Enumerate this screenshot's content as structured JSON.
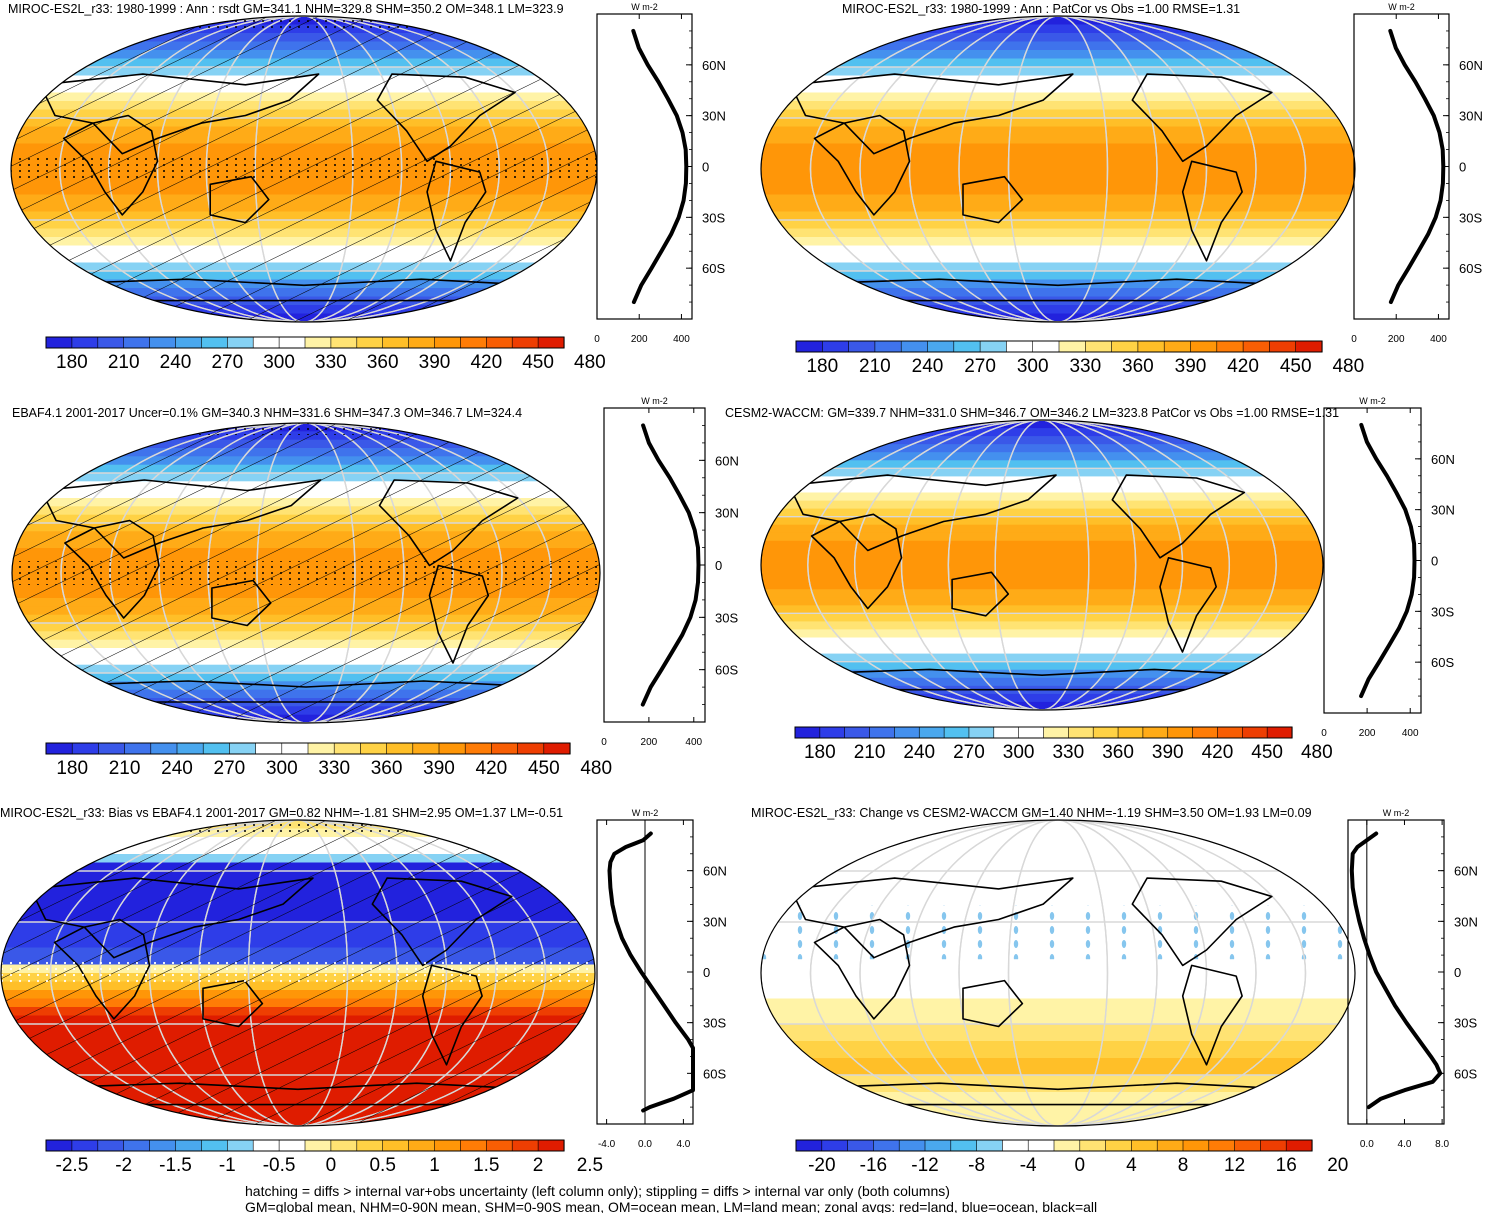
{
  "panels": [
    {
      "title": "MIROC-ES2L_r33: 1980-1999 : Ann : rsdt GM=341.1 NHM=329.8 SHM=350.2 OM=348.1 LM=323.9",
      "map_type": "rsdt",
      "hatch": true,
      "stipple_eq": true,
      "colorbar": [
        "180",
        "210",
        "240",
        "270",
        "300",
        "330",
        "360",
        "390",
        "420",
        "450",
        "480"
      ],
      "zonal": {
        "unit": "W m-2",
        "xticks": [
          "0",
          "200",
          "400"
        ],
        "xlim": [
          0,
          450
        ],
        "lat_ticks": [
          "60N",
          "30N",
          "0",
          "30S",
          "60S"
        ],
        "lat": [
          80,
          70,
          60,
          50,
          40,
          30,
          20,
          10,
          0,
          -10,
          -20,
          -30,
          -40,
          -50,
          -60,
          -70,
          -80
        ],
        "values": [
          172,
          198,
          240,
          291,
          336,
          378,
          405,
          420,
          423,
          421,
          410,
          387,
          351,
          305,
          258,
          210,
          175
        ]
      }
    },
    {
      "title": "MIROC-ES2L_r33: 1980-1999 : Ann : PatCor vs Obs =1.00 RMSE=1.31",
      "map_type": "rsdt",
      "hatch": false,
      "stipple_eq": false,
      "colorbar": [
        "180",
        "210",
        "240",
        "270",
        "300",
        "330",
        "360",
        "390",
        "420",
        "450",
        "480"
      ],
      "zonal": {
        "unit": "W m-2",
        "xticks": [
          "0",
          "200",
          "400"
        ],
        "xlim": [
          0,
          450
        ],
        "lat_ticks": [
          "60N",
          "30N",
          "0",
          "30S",
          "60S"
        ],
        "lat": [
          80,
          70,
          60,
          50,
          40,
          30,
          20,
          10,
          0,
          -10,
          -20,
          -30,
          -40,
          -50,
          -60,
          -70,
          -80
        ],
        "values": [
          172,
          198,
          240,
          291,
          336,
          378,
          405,
          420,
          423,
          421,
          410,
          387,
          351,
          305,
          258,
          210,
          175
        ]
      }
    },
    {
      "title": "EBAF4.1 2001-2017 Uncer=0.1% GM=340.3 NHM=331.6 SHM=347.3 OM=346.7 LM=324.4",
      "map_type": "rsdt",
      "hatch": true,
      "stipple_eq": true,
      "colorbar": [
        "180",
        "210",
        "240",
        "270",
        "300",
        "330",
        "360",
        "390",
        "420",
        "450",
        "480"
      ],
      "zonal": {
        "unit": "W m-2",
        "xticks": [
          "0",
          "200",
          "400"
        ],
        "xlim": [
          0,
          450
        ],
        "lat_ticks": [
          "60N",
          "30N",
          "0",
          "30S",
          "60S"
        ],
        "lat": [
          80,
          70,
          60,
          50,
          40,
          30,
          20,
          10,
          0,
          -10,
          -20,
          -30,
          -40,
          -50,
          -60,
          -70,
          -80
        ],
        "values": [
          174,
          200,
          243,
          293,
          337,
          378,
          404,
          419,
          421,
          419,
          408,
          385,
          349,
          303,
          256,
          208,
          173
        ]
      }
    },
    {
      "title": "CESM2-WACCM: GM=339.7 NHM=331.0 SHM=346.7 OM=346.2 LM=323.8 PatCor vs Obs =1.00 RMSE=1.31",
      "map_type": "rsdt",
      "hatch": false,
      "stipple_eq": false,
      "colorbar": [
        "180",
        "210",
        "240",
        "270",
        "300",
        "330",
        "360",
        "390",
        "420",
        "450",
        "480"
      ],
      "zonal": {
        "unit": "W m-2",
        "xticks": [
          "0",
          "200",
          "400"
        ],
        "xlim": [
          0,
          450
        ],
        "lat_ticks": [
          "60N",
          "30N",
          "0",
          "30S",
          "60S"
        ],
        "lat": [
          80,
          70,
          60,
          50,
          40,
          30,
          20,
          10,
          0,
          -10,
          -20,
          -30,
          -40,
          -50,
          -60,
          -70,
          -80
        ],
        "values": [
          173,
          199,
          242,
          292,
          336,
          377,
          403,
          418,
          420,
          418,
          407,
          384,
          348,
          302,
          255,
          207,
          172
        ]
      }
    },
    {
      "title": "MIROC-ES2L_r33: Bias vs EBAF4.1 2001-2017 GM=0.82 NHM=-1.81 SHM=2.95 OM=1.37 LM=-0.51",
      "map_type": "bias",
      "hatch": true,
      "stipple_eq": true,
      "colorbar": [
        "-2.5",
        "-2",
        "-1.5",
        "-1",
        "-0.5",
        "0",
        "0.5",
        "1",
        "1.5",
        "2",
        "2.5"
      ],
      "zonal": {
        "unit": "W m-2",
        "xticks": [
          "-4.0",
          "0.0",
          "4.0"
        ],
        "xlim": [
          -5,
          5
        ],
        "lat_ticks": [
          "60N",
          "30N",
          "0",
          "30S",
          "60S"
        ],
        "lat": [
          82,
          78,
          74,
          70,
          65,
          60,
          50,
          40,
          30,
          20,
          10,
          0,
          -10,
          -20,
          -30,
          -40,
          -45,
          -50,
          -60,
          -70,
          -75,
          -80,
          -82
        ],
        "values": [
          0.6,
          -0.2,
          -2.0,
          -3.2,
          -3.6,
          -3.7,
          -3.6,
          -3.4,
          -3.0,
          -2.4,
          -1.5,
          -0.4,
          0.8,
          2.0,
          3.2,
          4.5,
          5.2,
          6.0,
          7.0,
          6.0,
          3.0,
          0.5,
          -0.2
        ]
      }
    },
    {
      "title": "MIROC-ES2L_r33: Change vs CESM2-WACCM GM=1.40 NHM=-1.19 SHM=3.50 OM=1.93 LM=0.09",
      "map_type": "change",
      "hatch": false,
      "stipple_eq": false,
      "colorbar": [
        "-20",
        "-16",
        "-12",
        "-8",
        "-4",
        "0",
        "4",
        "8",
        "12",
        "16",
        "20"
      ],
      "zonal": {
        "unit": "W m-2",
        "xticks": [
          "0.0",
          "4.0",
          "8.0"
        ],
        "xlim": [
          -2,
          8.2
        ],
        "lat_ticks": [
          "60N",
          "30N",
          "0",
          "30S",
          "60S"
        ],
        "lat": [
          82,
          78,
          74,
          70,
          60,
          50,
          40,
          30,
          20,
          10,
          0,
          -10,
          -20,
          -30,
          -40,
          -50,
          -55,
          -60,
          -65,
          -70,
          -75,
          -80
        ],
        "values": [
          1.0,
          0.0,
          -1.0,
          -1.5,
          -1.6,
          -1.5,
          -1.2,
          -0.8,
          -0.3,
          0.3,
          1.0,
          2.0,
          3.0,
          4.2,
          5.5,
          6.8,
          7.4,
          7.8,
          7.0,
          4.0,
          1.5,
          0.2
        ]
      }
    }
  ],
  "footer": [
    "hatching = diffs > internal var+obs uncertainty (left column only); stippling = diffs > internal var only (both columns)",
    "GM=global mean, NHM=0-90N mean, SHM=0-90S mean, OM=ocean mean, LM=land mean; zonal avgs: red=land, blue=ocean, black=all"
  ],
  "colors": {
    "palette": [
      "#2222dd",
      "#2e3de8",
      "#3a58e8",
      "#3f73ec",
      "#4490ee",
      "#4aa8ee",
      "#52c0f0",
      "#86d2f4",
      "#ffffff",
      "#ffffff",
      "#fff3a6",
      "#ffe373",
      "#ffd245",
      "#ffbf28",
      "#ffab17",
      "#ff9608",
      "#ff7c06",
      "#f85e04",
      "#ee3e02",
      "#df1c00"
    ]
  }
}
